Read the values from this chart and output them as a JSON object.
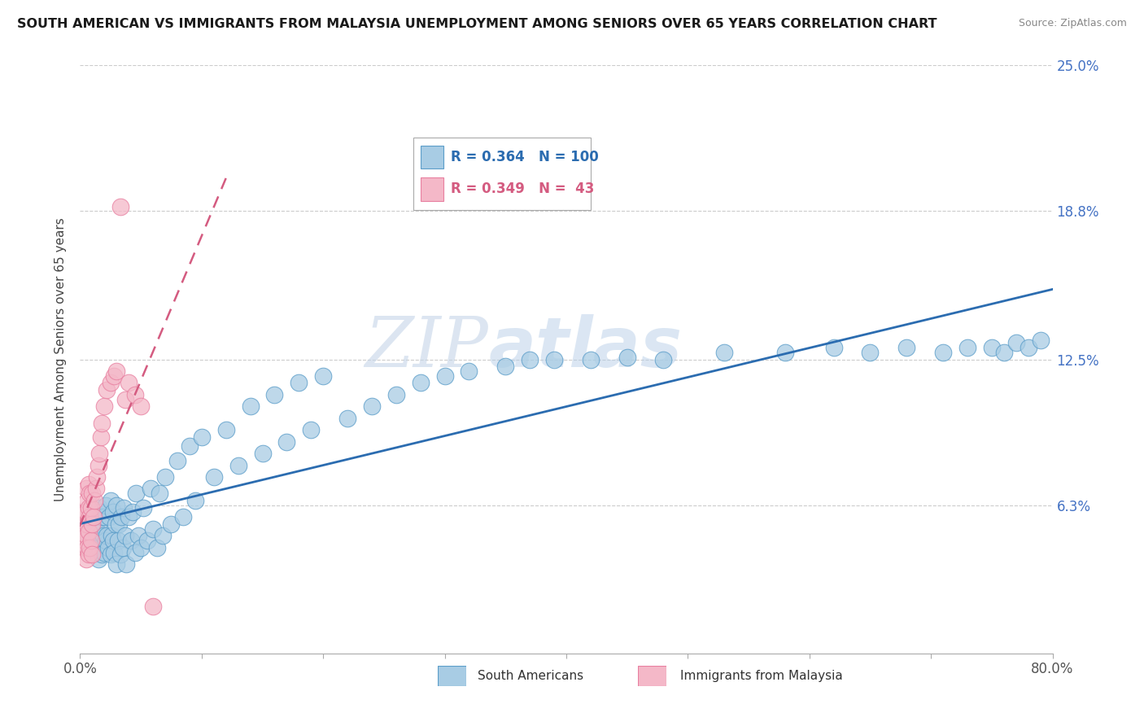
{
  "title": "SOUTH AMERICAN VS IMMIGRANTS FROM MALAYSIA UNEMPLOYMENT AMONG SENIORS OVER 65 YEARS CORRELATION CHART",
  "source": "Source: ZipAtlas.com",
  "ylabel": "Unemployment Among Seniors over 65 years",
  "xlim": [
    0.0,
    0.8
  ],
  "ylim": [
    0.0,
    0.25
  ],
  "yticks": [
    0.0,
    0.063,
    0.125,
    0.188,
    0.25
  ],
  "ytick_labels_right": [
    "",
    "6.3%",
    "12.5%",
    "18.8%",
    "25.0%"
  ],
  "xticks": [
    0.0,
    0.1,
    0.2,
    0.3,
    0.4,
    0.5,
    0.6,
    0.7,
    0.8
  ],
  "xtick_labels": [
    "0.0%",
    "",
    "",
    "",
    "",
    "",
    "",
    "",
    "80.0%"
  ],
  "blue_color": "#a8cce4",
  "pink_color": "#f4b8c8",
  "blue_edge_color": "#5b9dc9",
  "pink_edge_color": "#e87fa0",
  "blue_line_color": "#2b6cb0",
  "pink_line_color": "#d45b80",
  "R_blue": 0.364,
  "N_blue": 100,
  "R_pink": 0.349,
  "N_pink": 43,
  "watermark_zip": "ZIP",
  "watermark_atlas": "atlas",
  "legend_blue": "South Americans",
  "legend_pink": "Immigrants from Malaysia",
  "blue_scatter_x": [
    0.005,
    0.005,
    0.007,
    0.008,
    0.01,
    0.01,
    0.011,
    0.012,
    0.012,
    0.013,
    0.013,
    0.014,
    0.015,
    0.015,
    0.016,
    0.016,
    0.017,
    0.017,
    0.018,
    0.018,
    0.019,
    0.02,
    0.02,
    0.021,
    0.021,
    0.022,
    0.023,
    0.024,
    0.025,
    0.025,
    0.026,
    0.027,
    0.027,
    0.028,
    0.029,
    0.03,
    0.03,
    0.031,
    0.032,
    0.033,
    0.034,
    0.035,
    0.036,
    0.037,
    0.038,
    0.04,
    0.042,
    0.043,
    0.045,
    0.046,
    0.048,
    0.05,
    0.052,
    0.055,
    0.058,
    0.06,
    0.063,
    0.065,
    0.068,
    0.07,
    0.075,
    0.08,
    0.085,
    0.09,
    0.095,
    0.1,
    0.11,
    0.12,
    0.13,
    0.14,
    0.15,
    0.16,
    0.17,
    0.18,
    0.19,
    0.2,
    0.22,
    0.24,
    0.26,
    0.28,
    0.3,
    0.32,
    0.35,
    0.37,
    0.39,
    0.42,
    0.45,
    0.48,
    0.53,
    0.58,
    0.62,
    0.65,
    0.68,
    0.71,
    0.73,
    0.75,
    0.76,
    0.77,
    0.78,
    0.79
  ],
  "blue_scatter_y": [
    0.05,
    0.055,
    0.048,
    0.052,
    0.045,
    0.058,
    0.05,
    0.052,
    0.06,
    0.048,
    0.055,
    0.052,
    0.04,
    0.055,
    0.045,
    0.062,
    0.048,
    0.06,
    0.042,
    0.058,
    0.05,
    0.043,
    0.058,
    0.048,
    0.063,
    0.05,
    0.045,
    0.058,
    0.042,
    0.065,
    0.05,
    0.048,
    0.06,
    0.043,
    0.055,
    0.038,
    0.063,
    0.048,
    0.055,
    0.042,
    0.058,
    0.045,
    0.062,
    0.05,
    0.038,
    0.058,
    0.048,
    0.06,
    0.043,
    0.068,
    0.05,
    0.045,
    0.062,
    0.048,
    0.07,
    0.053,
    0.045,
    0.068,
    0.05,
    0.075,
    0.055,
    0.082,
    0.058,
    0.088,
    0.065,
    0.092,
    0.075,
    0.095,
    0.08,
    0.105,
    0.085,
    0.11,
    0.09,
    0.115,
    0.095,
    0.118,
    0.1,
    0.105,
    0.11,
    0.115,
    0.118,
    0.12,
    0.122,
    0.125,
    0.125,
    0.125,
    0.126,
    0.125,
    0.128,
    0.128,
    0.13,
    0.128,
    0.13,
    0.128,
    0.13,
    0.13,
    0.128,
    0.132,
    0.13,
    0.133
  ],
  "pink_scatter_x": [
    0.002,
    0.003,
    0.003,
    0.004,
    0.004,
    0.005,
    0.005,
    0.005,
    0.005,
    0.006,
    0.006,
    0.006,
    0.007,
    0.007,
    0.007,
    0.007,
    0.008,
    0.008,
    0.008,
    0.009,
    0.009,
    0.01,
    0.01,
    0.01,
    0.011,
    0.012,
    0.013,
    0.014,
    0.015,
    0.016,
    0.017,
    0.018,
    0.02,
    0.022,
    0.025,
    0.028,
    0.03,
    0.033,
    0.037,
    0.04,
    0.045,
    0.05,
    0.06
  ],
  "pink_scatter_y": [
    0.05,
    0.045,
    0.055,
    0.048,
    0.06,
    0.04,
    0.05,
    0.06,
    0.07,
    0.045,
    0.055,
    0.065,
    0.042,
    0.052,
    0.062,
    0.072,
    0.045,
    0.058,
    0.068,
    0.048,
    0.062,
    0.042,
    0.055,
    0.068,
    0.058,
    0.065,
    0.07,
    0.075,
    0.08,
    0.085,
    0.092,
    0.098,
    0.105,
    0.112,
    0.115,
    0.118,
    0.12,
    0.19,
    0.108,
    0.115,
    0.11,
    0.105,
    0.02
  ]
}
